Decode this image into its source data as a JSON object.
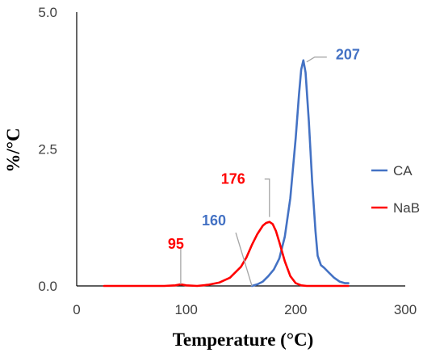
{
  "chart_data": {
    "type": "line",
    "xlabel": "Temperature (°C)",
    "ylabel": "%/°C",
    "xlim": [
      0,
      300
    ],
    "ylim": [
      0,
      5
    ],
    "x_ticks": [
      "0",
      "100",
      "200",
      "300"
    ],
    "y_ticks": [
      "0.0",
      "2.5",
      "5.0"
    ],
    "grid": false,
    "legend_position": "right",
    "series": [
      {
        "name": "CA",
        "color": "#4472C4",
        "x": [
          160,
          165,
          170,
          175,
          180,
          185,
          190,
          195,
          200,
          203,
          205,
          207,
          209,
          212,
          215,
          218,
          220,
          223,
          226,
          230,
          235,
          240,
          245,
          248
        ],
        "y": [
          0.0,
          0.03,
          0.08,
          0.18,
          0.3,
          0.5,
          0.9,
          1.6,
          2.7,
          3.5,
          3.95,
          4.12,
          3.9,
          3.0,
          1.9,
          1.0,
          0.55,
          0.38,
          0.33,
          0.25,
          0.15,
          0.08,
          0.05,
          0.05
        ]
      },
      {
        "name": "NaB",
        "color": "#FF0000",
        "x": [
          25,
          50,
          80,
          90,
          95,
          100,
          110,
          120,
          130,
          140,
          150,
          155,
          160,
          165,
          170,
          173,
          176,
          179,
          182,
          185,
          190,
          195,
          200,
          205,
          210,
          220,
          248
        ],
        "y": [
          0.0,
          0.0,
          0.0,
          0.01,
          0.03,
          0.01,
          0.0,
          0.02,
          0.06,
          0.15,
          0.35,
          0.52,
          0.75,
          0.95,
          1.1,
          1.15,
          1.17,
          1.13,
          1.0,
          0.8,
          0.45,
          0.18,
          0.05,
          0.01,
          0.0,
          0.0,
          0.0
        ]
      }
    ],
    "annotations": [
      {
        "text": "207",
        "series": "CA",
        "x": 207,
        "y": 4.12,
        "color": "#4472C4"
      },
      {
        "text": "176",
        "series": "NaB",
        "x": 176,
        "y": 1.17,
        "color": "#FF0000"
      },
      {
        "text": "160",
        "series": "CA",
        "x": 160,
        "y": 0.0,
        "color": "#4472C4"
      },
      {
        "text": "95",
        "series": "NaB",
        "x": 95,
        "y": 0.03,
        "color": "#FF0000"
      }
    ]
  }
}
